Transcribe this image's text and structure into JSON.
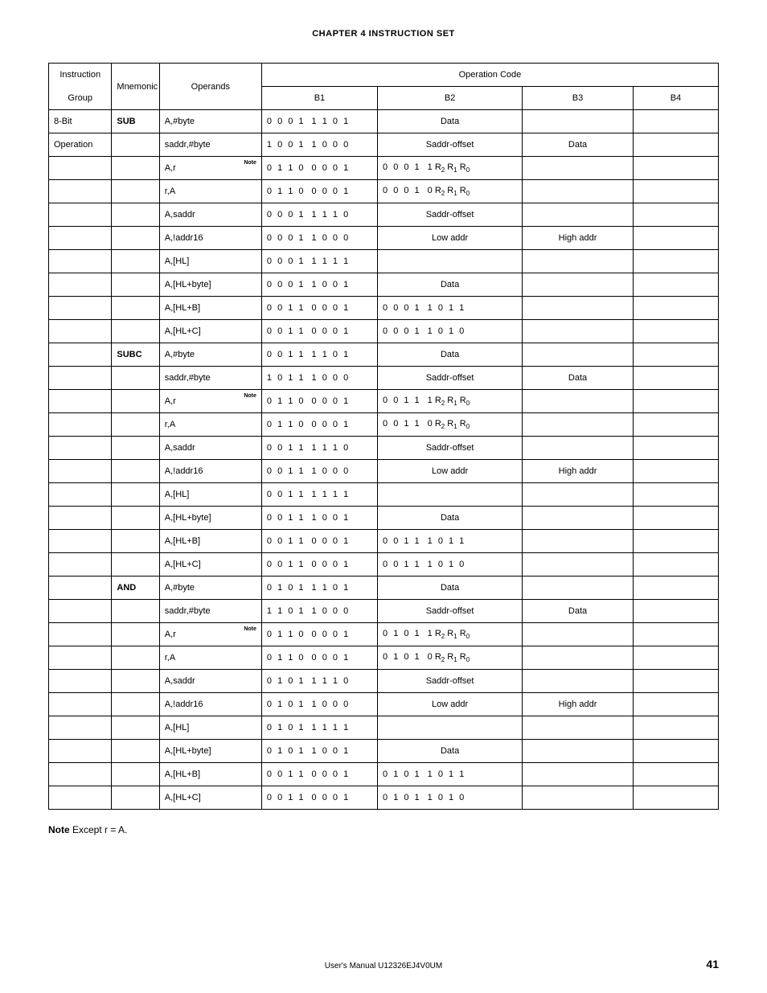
{
  "chapter_title": "CHAPTER 4  INSTRUCTION SET",
  "headers": {
    "instr_group_line1": "Instruction",
    "instr_group_line2": "Group",
    "mnemonic": "Mnemonic",
    "operands": "Operands",
    "opcode": "Operation Code",
    "b1": "B1",
    "b2": "B2",
    "b3": "B3",
    "b4": "B4"
  },
  "group": {
    "line1": "8-Bit",
    "line2": "Operation"
  },
  "mnemonics": {
    "sub": "SUB",
    "subc": "SUBC",
    "and": "AND"
  },
  "labels": {
    "data": "Data",
    "saddr_offset": "Saddr-offset",
    "low_addr": "Low addr",
    "high_addr": "High addr",
    "note": "Note"
  },
  "bit_parts": {
    "0001": "0 0 0 1",
    "1101": "1 1 0 1",
    "1001": "1 0 0 1",
    "1000": "1 0 0 0",
    "0110": "0 1 1 0",
    "1110": "1 1 1 0",
    "1111": "1 1 1 1",
    "0011": "0 0 1 1",
    "1011": "1 0 1 1",
    "1010": "1 0 1 0",
    "0101": "0 1 0 1"
  },
  "r_suffix": {
    "one": "1  R",
    "zero": "0  R",
    "s2": "2",
    "s1": "1",
    "s0": "0",
    "between": " R"
  },
  "rows": {
    "sub": [
      {
        "op": "A,#byte",
        "b1a": "0001",
        "b1b": "1101",
        "b2": "data"
      },
      {
        "op": "saddr,#byte",
        "b1a": "1001",
        "b1b": "1000",
        "b2": "saddr",
        "b3": "data"
      },
      {
        "op": "A,r",
        "note": true,
        "b1a": "0110",
        "b1b": "0001",
        "b2r": "0001",
        "b2r2": "one"
      },
      {
        "op": "r,A",
        "b1a": "0110",
        "b1b": "0001",
        "b2r": "0001",
        "b2r2": "zero"
      },
      {
        "op": "A,saddr",
        "b1a": "0001",
        "b1b": "1110",
        "b2": "saddr"
      },
      {
        "op": "A,!addr16",
        "b1a": "0001",
        "b1b": "1000",
        "b2": "low",
        "b3": "high"
      },
      {
        "op": "A,[HL]",
        "b1a": "0001",
        "b1b": "1111"
      },
      {
        "op": "A,[HL+byte]",
        "b1a": "0001",
        "b1b": "1001",
        "b2": "data"
      },
      {
        "op": "A,[HL+B]",
        "b1a": "0011",
        "b1b": "0001",
        "b2a": "0001",
        "b2b": "1011"
      },
      {
        "op": "A,[HL+C]",
        "b1a": "0011",
        "b1b": "0001",
        "b2a": "0001",
        "b2b": "1010"
      }
    ],
    "subc": [
      {
        "op": "A,#byte",
        "b1a": "0011",
        "b1b": "1101",
        "b2": "data"
      },
      {
        "op": "saddr,#byte",
        "b1a": "1011",
        "b1b": "1000",
        "b2": "saddr",
        "b3": "data"
      },
      {
        "op": "A,r",
        "note": true,
        "b1a": "0110",
        "b1b": "0001",
        "b2r": "0011",
        "b2r2": "one"
      },
      {
        "op": "r,A",
        "b1a": "0110",
        "b1b": "0001",
        "b2r": "0011",
        "b2r2": "zero"
      },
      {
        "op": "A,saddr",
        "b1a": "0011",
        "b1b": "1110",
        "b2": "saddr"
      },
      {
        "op": "A,!addr16",
        "b1a": "0011",
        "b1b": "1000",
        "b2": "low",
        "b3": "high"
      },
      {
        "op": "A,[HL]",
        "b1a": "0011",
        "b1b": "1111"
      },
      {
        "op": "A,[HL+byte]",
        "b1a": "0011",
        "b1b": "1001",
        "b2": "data"
      },
      {
        "op": "A,[HL+B]",
        "b1a": "0011",
        "b1b": "0001",
        "b2a": "0011",
        "b2b": "1011"
      },
      {
        "op": "A,[HL+C]",
        "b1a": "0011",
        "b1b": "0001",
        "b2a": "0011",
        "b2b": "1010"
      }
    ],
    "and": [
      {
        "op": "A,#byte",
        "b1a": "0101",
        "b1b": "1101",
        "b2": "data"
      },
      {
        "op": "saddr,#byte",
        "b1a": "1101",
        "b1b": "1000",
        "b2": "saddr",
        "b3": "data"
      },
      {
        "op": "A,r",
        "note": true,
        "b1a": "0110",
        "b1b": "0001",
        "b2r": "0101",
        "b2r2": "one"
      },
      {
        "op": "r,A",
        "b1a": "0110",
        "b1b": "0001",
        "b2r": "0101",
        "b2r2": "zero"
      },
      {
        "op": "A,saddr",
        "b1a": "0101",
        "b1b": "1110",
        "b2": "saddr"
      },
      {
        "op": "A,!addr16",
        "b1a": "0101",
        "b1b": "1000",
        "b2": "low",
        "b3": "high"
      },
      {
        "op": "A,[HL]",
        "b1a": "0101",
        "b1b": "1111"
      },
      {
        "op": "A,[HL+byte]",
        "b1a": "0101",
        "b1b": "1001",
        "b2": "data"
      },
      {
        "op": "A,[HL+B]",
        "b1a": "0011",
        "b1b": "0001",
        "b2a": "0101",
        "b2b": "1011"
      },
      {
        "op": "A,[HL+C]",
        "b1a": "0011",
        "b1b": "0001",
        "b2a": "0101",
        "b2b": "1010"
      }
    ]
  },
  "footnote": {
    "label": "Note",
    "text": "  Except r = A."
  },
  "footer": {
    "manual": "User's Manual  U12326EJ4V0UM",
    "page": "41"
  }
}
